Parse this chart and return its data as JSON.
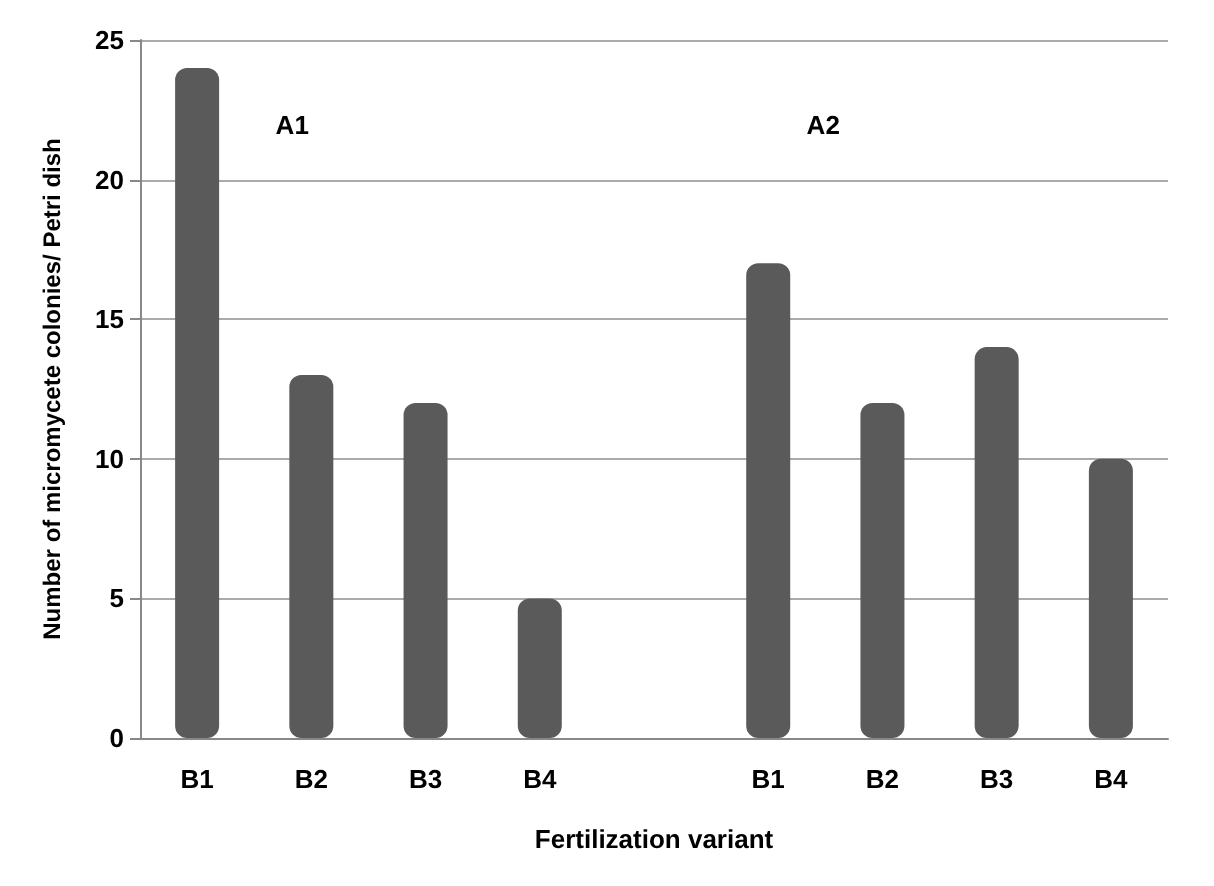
{
  "chart_data": {
    "type": "bar",
    "xlabel": "Fertilization variant",
    "ylabel": "Number of micromycete colonies/ Petri dish",
    "categories": [
      "B1",
      "B2",
      "B3",
      "B4",
      null,
      "B1",
      "B2",
      "B3",
      "B4"
    ],
    "values": [
      24,
      13,
      12,
      5,
      null,
      17,
      12,
      14,
      10
    ],
    "color": "#5a5a5a",
    "ylim": [
      0,
      25
    ],
    "yticks": [
      0,
      5,
      10,
      15,
      20,
      25
    ],
    "grid": "y",
    "annotations": [
      "A1",
      "A2"
    ]
  }
}
